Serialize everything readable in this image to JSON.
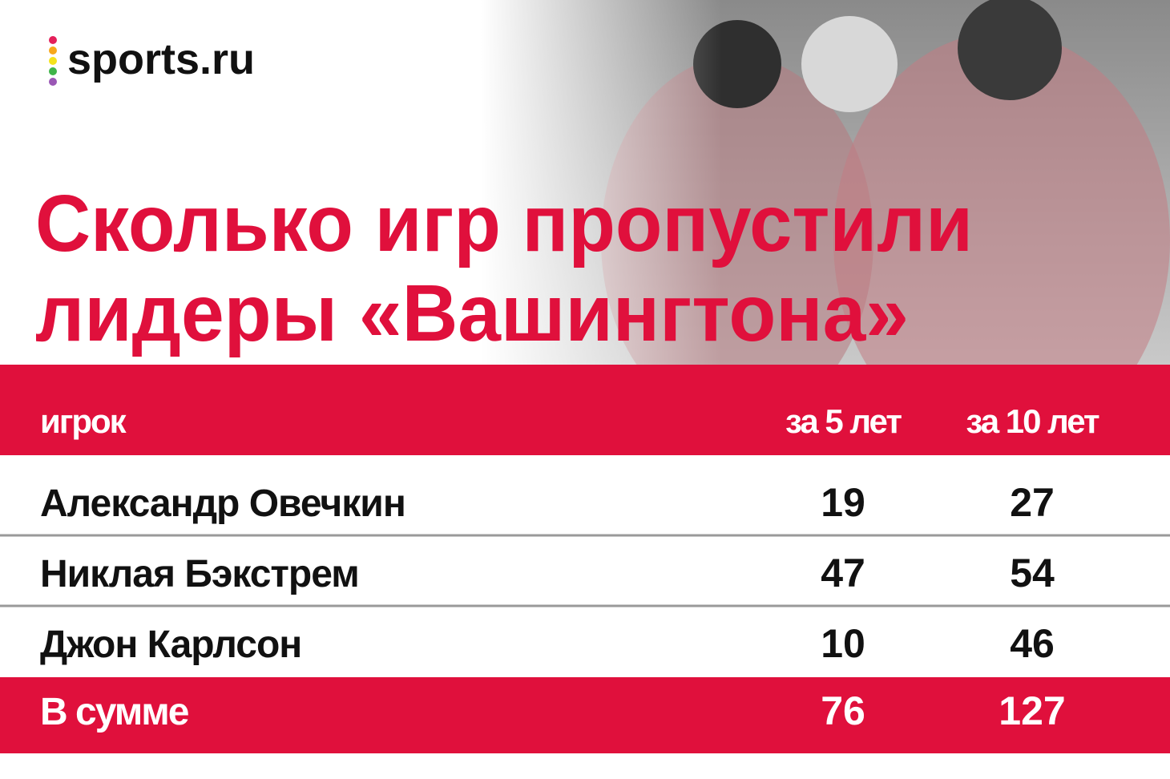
{
  "logo": "sports.ru",
  "title": [
    "Сколько игр пропустили",
    "лидеры «Вашингтона»"
  ],
  "table": {
    "header": [
      "игрок",
      "за 5 лет",
      "за 10 лет"
    ],
    "rows": [
      [
        "Александр Овечкин",
        19,
        27
      ],
      [
        "Никлая Бэкстрем",
        47,
        54
      ],
      [
        "Джон Карлсон",
        10,
        46
      ]
    ],
    "total": [
      "В сумме",
      76,
      127
    ]
  }
}
